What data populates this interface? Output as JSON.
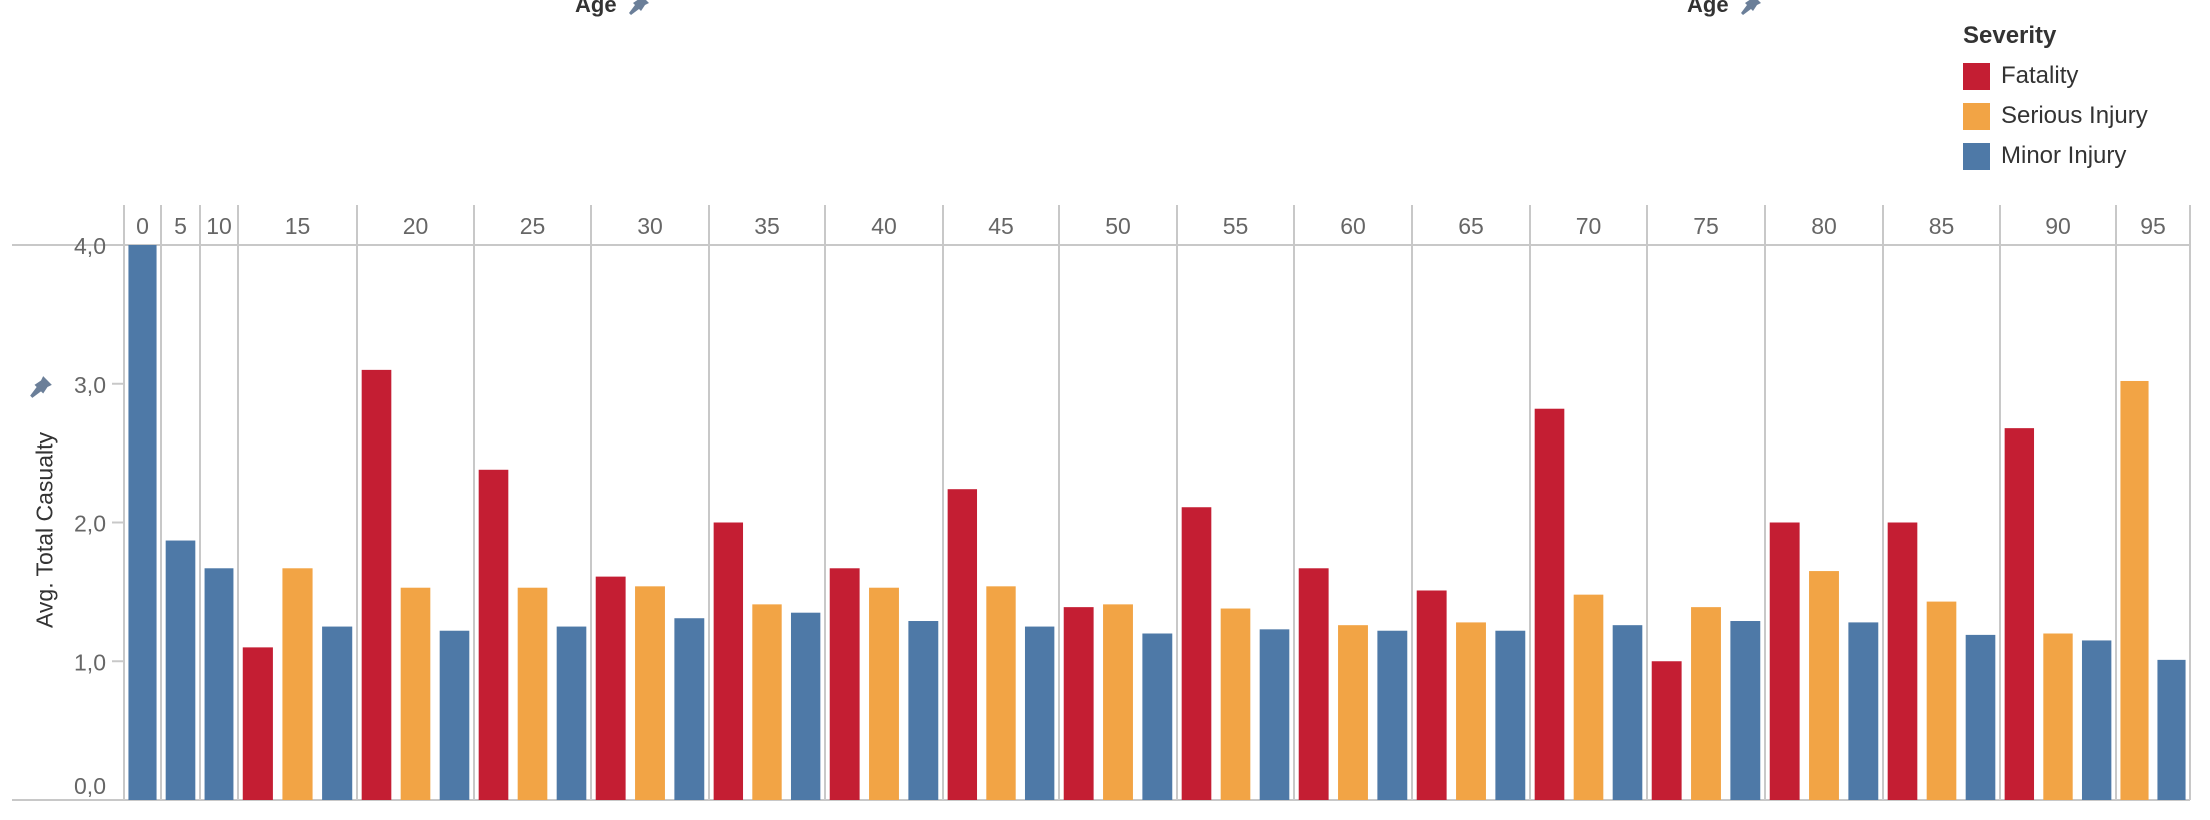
{
  "top_fields": [
    {
      "label": "Age",
      "icon": "pin-icon"
    },
    {
      "label": "Age",
      "icon": "pin-icon"
    }
  ],
  "legend": {
    "title": "Severity",
    "items": [
      {
        "label": "Fatality",
        "color": "#c41e33"
      },
      {
        "label": "Serious Injury",
        "color": "#f2a445"
      },
      {
        "label": "Minor Injury",
        "color": "#4e79a7"
      }
    ]
  },
  "chart_data": {
    "type": "bar",
    "ylabel": "Avg. Total Casualty",
    "ylim": [
      0,
      4.0
    ],
    "yticks": [
      "0,0",
      "1,0",
      "2,0",
      "3,0",
      "4,0"
    ],
    "grid": "vertical column dividers",
    "legend_placement": "top-right",
    "age_groups": [
      {
        "age": "0",
        "Fatality": null,
        "Serious Injury": null,
        "Minor Injury": 4.0
      },
      {
        "age": "5",
        "Fatality": null,
        "Serious Injury": null,
        "Minor Injury": 1.87
      },
      {
        "age": "10",
        "Fatality": null,
        "Serious Injury": null,
        "Minor Injury": 1.67
      },
      {
        "age": "15",
        "Fatality": 1.1,
        "Serious Injury": 1.67,
        "Minor Injury": 1.25
      },
      {
        "age": "20",
        "Fatality": 3.1,
        "Serious Injury": 1.53,
        "Minor Injury": 1.22
      },
      {
        "age": "25",
        "Fatality": 2.38,
        "Serious Injury": 1.53,
        "Minor Injury": 1.25
      },
      {
        "age": "30",
        "Fatality": 1.61,
        "Serious Injury": 1.54,
        "Minor Injury": 1.31
      },
      {
        "age": "35",
        "Fatality": 2.0,
        "Serious Injury": 1.41,
        "Minor Injury": 1.35
      },
      {
        "age": "40",
        "Fatality": 1.67,
        "Serious Injury": 1.53,
        "Minor Injury": 1.29
      },
      {
        "age": "45",
        "Fatality": 2.24,
        "Serious Injury": 1.54,
        "Minor Injury": 1.25
      },
      {
        "age": "50",
        "Fatality": 1.39,
        "Serious Injury": 1.41,
        "Minor Injury": 1.2
      },
      {
        "age": "55",
        "Fatality": 2.11,
        "Serious Injury": 1.38,
        "Minor Injury": 1.23
      },
      {
        "age": "60",
        "Fatality": 1.67,
        "Serious Injury": 1.26,
        "Minor Injury": 1.22
      },
      {
        "age": "65",
        "Fatality": 1.51,
        "Serious Injury": 1.28,
        "Minor Injury": 1.22
      },
      {
        "age": "70",
        "Fatality": 2.82,
        "Serious Injury": 1.48,
        "Minor Injury": 1.26
      },
      {
        "age": "75",
        "Fatality": 1.0,
        "Serious Injury": 1.39,
        "Minor Injury": 1.29
      },
      {
        "age": "80",
        "Fatality": 2.0,
        "Serious Injury": 1.65,
        "Minor Injury": 1.28
      },
      {
        "age": "85",
        "Fatality": 2.0,
        "Serious Injury": 1.43,
        "Minor Injury": 1.19
      },
      {
        "age": "90",
        "Fatality": 2.68,
        "Serious Injury": 1.2,
        "Minor Injury": 1.15
      },
      {
        "age": "95",
        "Fatality": null,
        "Serious Injury": 3.02,
        "Minor Injury": 1.01
      }
    ]
  }
}
